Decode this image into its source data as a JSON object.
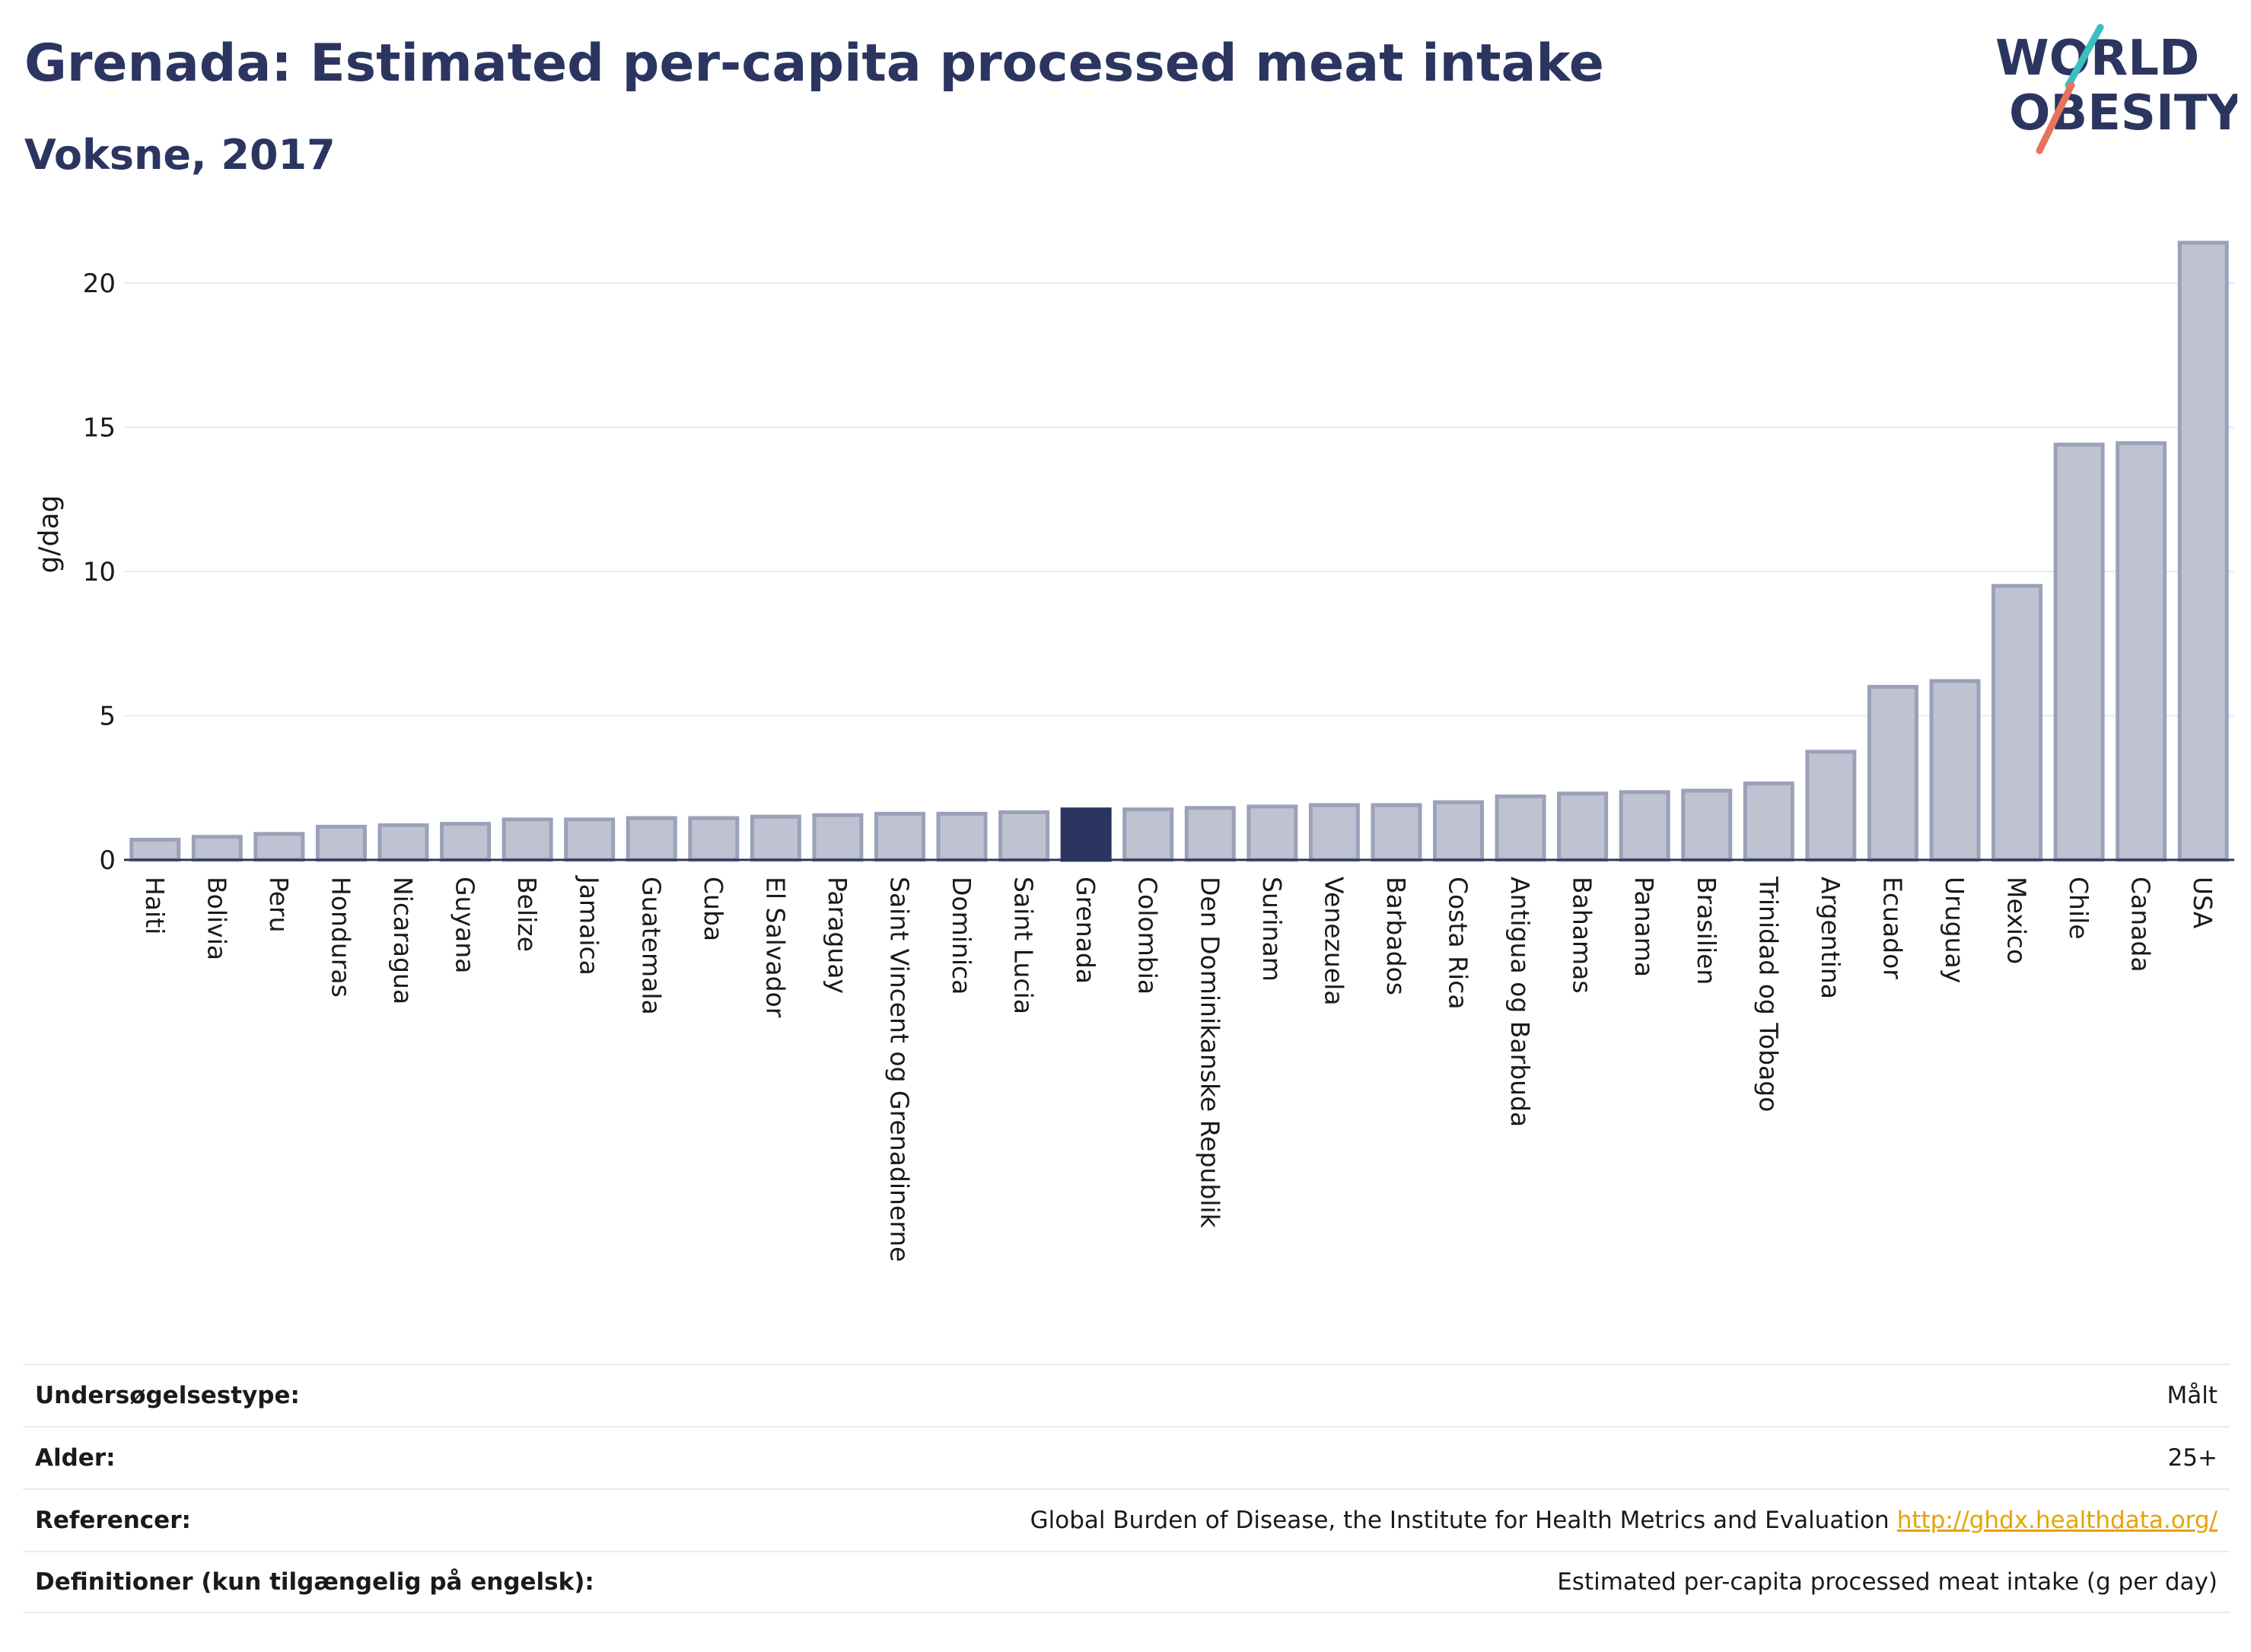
{
  "header": {
    "title": "Grenada: Estimated per-capita processed meat intake",
    "subtitle": "Voksne, 2017"
  },
  "logo": {
    "line1": "WORLD",
    "line2": "OBESITY",
    "colors": {
      "text": "#2b3560",
      "slash_top": "#3bbfbf",
      "slash_bottom": "#e8735a"
    }
  },
  "colors": {
    "bar": "#bfc3d1",
    "bar_stroke": "#9aa1b8",
    "highlight": "#2b3560",
    "grid": "#e6e9ee",
    "axis": "#2b3560"
  },
  "chart_data": {
    "type": "bar",
    "ylabel": "g/dag",
    "xlabel": "",
    "ylim": [
      0,
      22
    ],
    "yticks": [
      0,
      5,
      10,
      15,
      20
    ],
    "grid": true,
    "highlight": "Grenada",
    "categories": [
      "Haiti",
      "Bolivia",
      "Peru",
      "Honduras",
      "Nicaragua",
      "Guyana",
      "Belize",
      "Jamaica",
      "Guatemala",
      "Cuba",
      "El Salvador",
      "Paraguay",
      "Saint Vincent og Grenadinerne",
      "Dominica",
      "Saint Lucia",
      "Grenada",
      "Colombia",
      "Den Dominikanske Republik",
      "Surinam",
      "Venezuela",
      "Barbados",
      "Costa Rica",
      "Antigua og Barbuda",
      "Bahamas",
      "Panama",
      "Brasilien",
      "Trinidad og Tobago",
      "Argentina",
      "Ecuador",
      "Uruguay",
      "Mexico",
      "Chile",
      "Canada",
      "USA"
    ],
    "values": [
      0.7,
      0.8,
      0.9,
      1.15,
      1.2,
      1.25,
      1.4,
      1.4,
      1.45,
      1.45,
      1.5,
      1.55,
      1.6,
      1.6,
      1.65,
      1.75,
      1.75,
      1.8,
      1.85,
      1.9,
      1.9,
      2.0,
      2.2,
      2.3,
      2.35,
      2.4,
      2.65,
      3.75,
      6.0,
      6.2,
      9.5,
      14.4,
      14.45,
      21.4
    ]
  },
  "info": {
    "rows": [
      {
        "label": "Undersøgelsestype:",
        "value": "Målt"
      },
      {
        "label": "Alder:",
        "value": "25+"
      },
      {
        "label": "Referencer:",
        "value": "Global Burden of Disease, the Institute for Health Metrics and Evaluation",
        "link": "http://ghdx.healthdata.org/"
      },
      {
        "label": "Definitioner (kun tilgængelig på engelsk):",
        "value": "Estimated per-capita processed meat intake (g per day)"
      }
    ]
  }
}
